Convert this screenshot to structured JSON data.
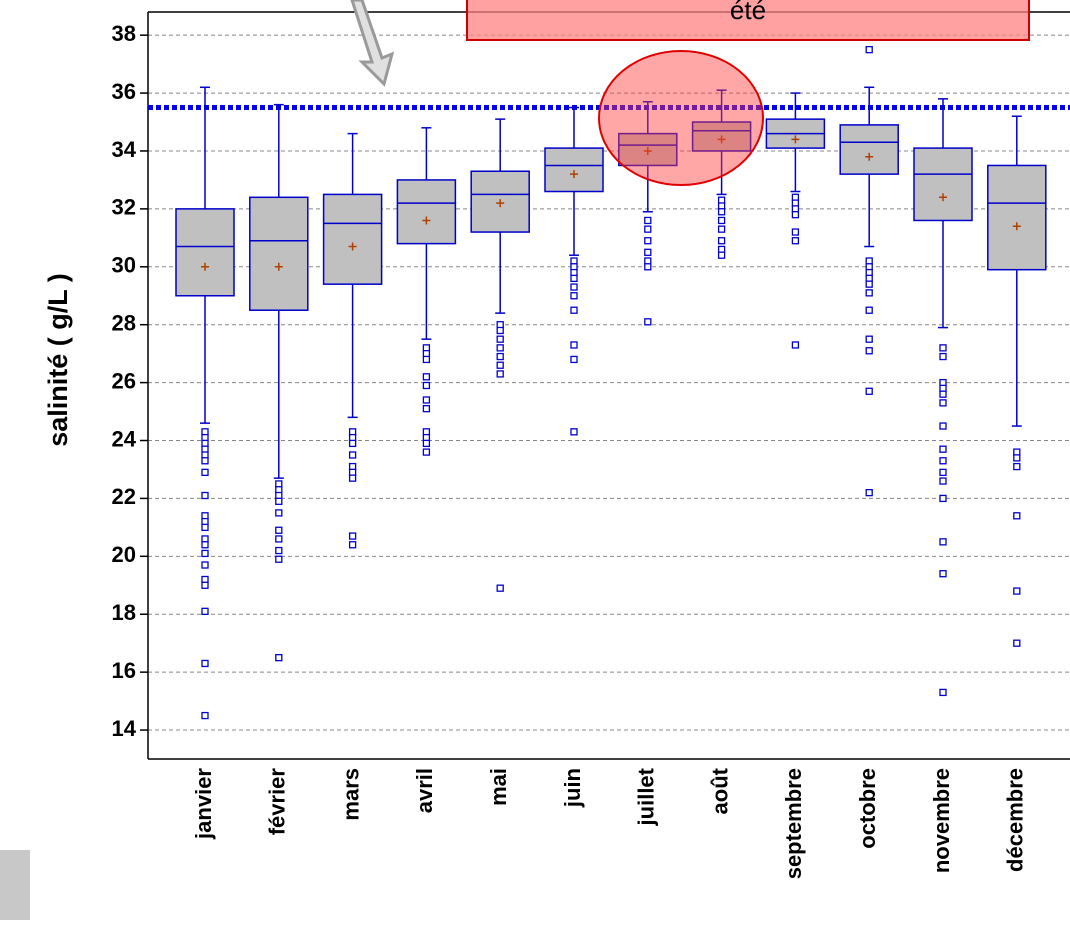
{
  "chart_data": {
    "type": "box",
    "y_label": "salinité ( g/L )",
    "annotation": "été",
    "ylim": [
      13,
      38.8
    ],
    "yticks": [
      14,
      16,
      18,
      20,
      22,
      24,
      26,
      28,
      30,
      32,
      34,
      36,
      38
    ],
    "grid": true,
    "reference_line": 35.5,
    "reference_color": "#0000ee",
    "box_color": "#c0c0c0",
    "line_color": "#0000cc",
    "mean_color": "#b04000",
    "categories": [
      "janvier",
      "février",
      "mars",
      "avril",
      "mai",
      "juin",
      "juillet",
      "août",
      "septembre",
      "octobre",
      "novembre",
      "décembre"
    ],
    "boxes": [
      {
        "whislo": 24.6,
        "q1": 29.0,
        "med": 30.7,
        "q3": 32.0,
        "whishi": 36.2,
        "mean": 30.0,
        "outliers": [
          24.3,
          24.1,
          23.9,
          23.7,
          23.5,
          23.3,
          22.9,
          22.1,
          21.4,
          21.2,
          21.0,
          20.6,
          20.4,
          20.1,
          19.7,
          19.2,
          19.0,
          18.1,
          16.3,
          14.5
        ]
      },
      {
        "whislo": 22.7,
        "q1": 28.5,
        "med": 30.9,
        "q3": 32.4,
        "whishi": 35.6,
        "mean": 30.0,
        "outliers": [
          22.5,
          22.3,
          22.1,
          21.9,
          21.5,
          20.9,
          20.6,
          20.2,
          19.9,
          16.5
        ]
      },
      {
        "whislo": 24.8,
        "q1": 29.4,
        "med": 31.5,
        "q3": 32.5,
        "whishi": 34.6,
        "mean": 30.7,
        "outliers": [
          24.3,
          24.1,
          23.9,
          23.5,
          23.1,
          22.9,
          22.7,
          20.7,
          20.4
        ]
      },
      {
        "whislo": 27.5,
        "q1": 30.8,
        "med": 32.2,
        "q3": 33.0,
        "whishi": 34.8,
        "mean": 31.6,
        "outliers": [
          27.2,
          27.0,
          26.8,
          26.2,
          25.9,
          25.4,
          25.1,
          24.3,
          24.1,
          23.9,
          23.6
        ]
      },
      {
        "whislo": 28.4,
        "q1": 31.2,
        "med": 32.5,
        "q3": 33.3,
        "whishi": 35.1,
        "mean": 32.2,
        "outliers": [
          28.0,
          27.8,
          27.5,
          27.2,
          26.9,
          26.6,
          26.3,
          18.9
        ]
      },
      {
        "whislo": 30.4,
        "q1": 32.6,
        "med": 33.5,
        "q3": 34.1,
        "whishi": 35.5,
        "mean": 33.2,
        "outliers": [
          30.2,
          30.0,
          29.8,
          29.6,
          29.3,
          29.0,
          28.5,
          27.3,
          26.8,
          24.3
        ]
      },
      {
        "whislo": 31.9,
        "q1": 33.5,
        "med": 34.2,
        "q3": 34.6,
        "whishi": 35.7,
        "mean": 34.0,
        "outliers": [
          31.6,
          31.3,
          30.9,
          30.5,
          30.2,
          30.0,
          28.1
        ]
      },
      {
        "whislo": 32.5,
        "q1": 34.0,
        "med": 34.7,
        "q3": 35.0,
        "whishi": 36.1,
        "mean": 34.4,
        "outliers": [
          32.3,
          32.1,
          31.9,
          31.6,
          31.3,
          30.9,
          30.6,
          30.4
        ]
      },
      {
        "whislo": 32.6,
        "q1": 34.1,
        "med": 34.6,
        "q3": 35.1,
        "whishi": 36.0,
        "mean": 34.4,
        "outliers": [
          32.4,
          32.2,
          32.0,
          31.8,
          31.2,
          30.9,
          27.3
        ]
      },
      {
        "whislo": 30.7,
        "q1": 33.2,
        "med": 34.3,
        "q3": 34.9,
        "whishi": 36.2,
        "mean": 33.8,
        "outliers": [
          37.5,
          30.2,
          30.0,
          29.8,
          29.6,
          29.4,
          29.1,
          28.5,
          27.5,
          27.1,
          25.7,
          22.2
        ]
      },
      {
        "whislo": 27.9,
        "q1": 31.6,
        "med": 33.2,
        "q3": 34.1,
        "whishi": 35.8,
        "mean": 32.4,
        "outliers": [
          27.2,
          26.9,
          26.0,
          25.8,
          25.6,
          25.3,
          24.5,
          23.7,
          23.3,
          22.9,
          22.6,
          22.0,
          20.5,
          19.4,
          15.3
        ]
      },
      {
        "whislo": 24.5,
        "q1": 29.9,
        "med": 32.2,
        "q3": 33.5,
        "whishi": 35.2,
        "mean": 31.4,
        "outliers": [
          23.6,
          23.4,
          23.1,
          21.4,
          18.8,
          17.0
        ]
      }
    ]
  }
}
